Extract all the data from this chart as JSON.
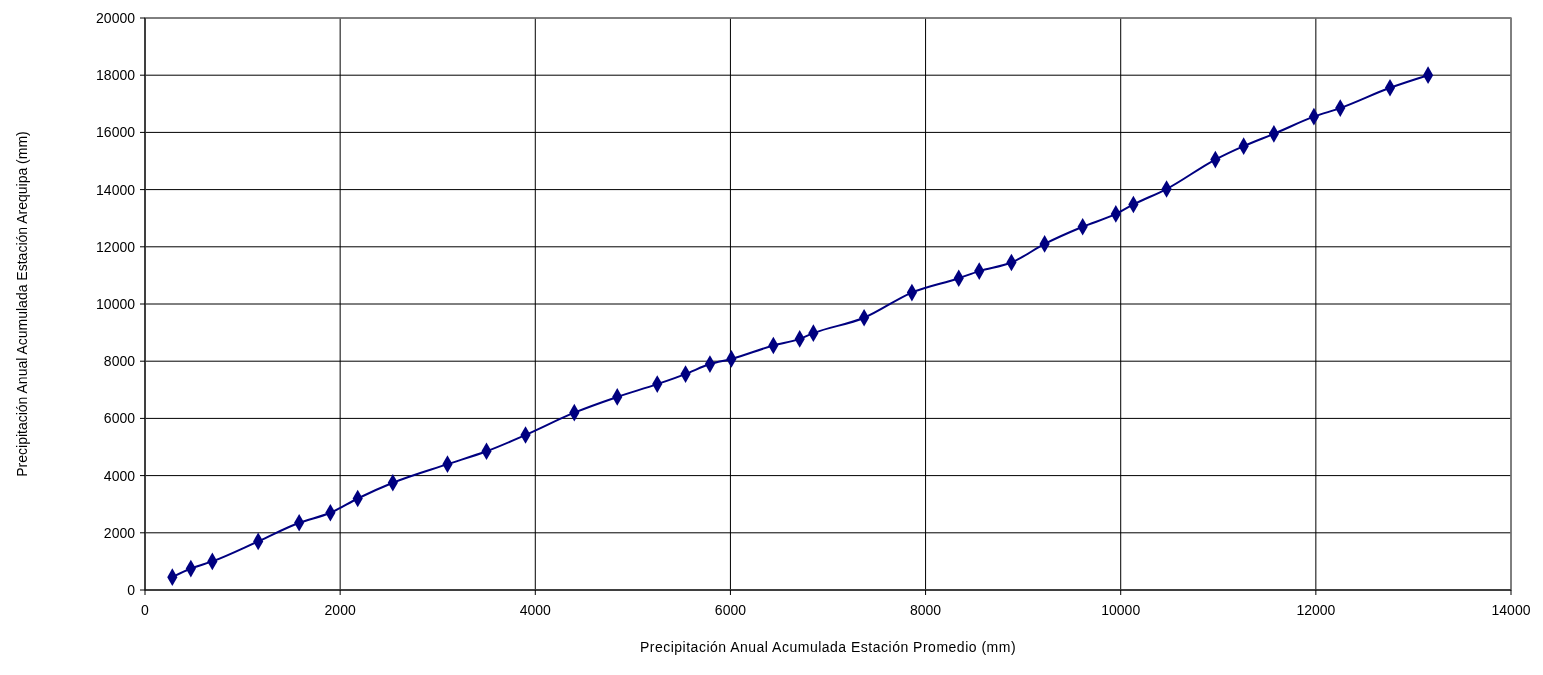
{
  "chart_data": {
    "type": "line",
    "xlabel": "Precipitación Anual Acumulada Estación Promedio (mm)",
    "ylabel": "Precipitación Anual Acumulada Estación Arequipa (mm)",
    "xlim": [
      0,
      14000
    ],
    "xticks": [
      0,
      2000,
      4000,
      6000,
      8000,
      10000,
      12000,
      14000
    ],
    "ylim": [
      0,
      20000
    ],
    "yticks": [
      0,
      2000,
      4000,
      6000,
      8000,
      10000,
      12000,
      14000,
      16000,
      18000,
      20000
    ],
    "grid": true,
    "marker": "diamond",
    "line_style": "solid",
    "series": [
      {
        "color": "#000080",
        "x": [
          280,
          470,
          690,
          1160,
          1580,
          1900,
          2180,
          2540,
          3100,
          3500,
          3900,
          4400,
          4840,
          5250,
          5540,
          5790,
          6010,
          6440,
          6710,
          6850,
          7370,
          7860,
          8340,
          8550,
          8880,
          9220,
          9610,
          9950,
          10130,
          10470,
          10970,
          11260,
          11570,
          11980,
          12250,
          12760,
          13150
        ],
        "values": [
          450,
          750,
          1000,
          1700,
          2350,
          2700,
          3200,
          3750,
          4400,
          4850,
          5420,
          6200,
          6750,
          7200,
          7550,
          7900,
          8080,
          8550,
          8780,
          8980,
          9520,
          10400,
          10900,
          11150,
          11450,
          12100,
          12700,
          13150,
          13480,
          14020,
          15050,
          15520,
          15950,
          16550,
          16850,
          17560,
          18000
        ]
      }
    ]
  }
}
